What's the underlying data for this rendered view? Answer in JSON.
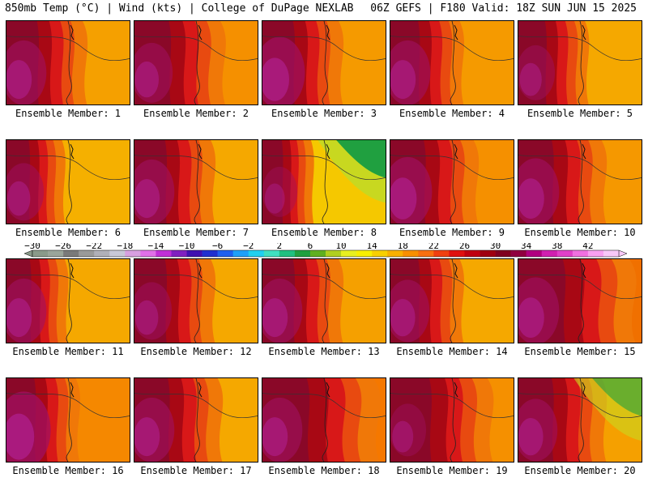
{
  "header": {
    "left": "850mb Temp (°C) | Wind (kts) | College of DuPage NEXLAB",
    "right": "06Z GEFS | F180 Valid: 18Z SUN JUN 15 2025"
  },
  "colorbar": {
    "labels": [
      "−30",
      "−26",
      "−22",
      "−18",
      "−14",
      "−10",
      "−6",
      "−2",
      "2",
      "6",
      "10",
      "14",
      "18",
      "22",
      "26",
      "30",
      "34",
      "38",
      "42"
    ],
    "colors": [
      "#8a9a8a",
      "#9aa59a",
      "#7a7a7a",
      "#9a9a9a",
      "#b0b0b8",
      "#c8c8d8",
      "#d8a0e0",
      "#e070e8",
      "#c030d8",
      "#8020c0",
      "#4010b0",
      "#2030d0",
      "#2060f0",
      "#20a0f8",
      "#20d0f0",
      "#40e0c0",
      "#20c080",
      "#20a040",
      "#60b020",
      "#b0d020",
      "#e8f020",
      "#f8f000",
      "#f8d000",
      "#f8b000",
      "#f89000",
      "#f87010",
      "#f04010",
      "#e01010",
      "#c00010",
      "#a00010",
      "#800020",
      "#900040",
      "#b00080",
      "#d020b0",
      "#e040c8",
      "#f070e0",
      "#f8a0f0",
      "#f8c8f8"
    ]
  },
  "panels": [
    {
      "label": "Ensemble Member: 1",
      "base": "#f5a000",
      "west": 0.55,
      "hot": 0.6,
      "green": 0
    },
    {
      "label": "Ensemble Member: 2",
      "base": "#f59000",
      "west": 0.62,
      "hot": 0.5,
      "green": 0
    },
    {
      "label": "Ensemble Member: 3",
      "base": "#f59a00",
      "west": 0.55,
      "hot": 0.75,
      "green": 0
    },
    {
      "label": "Ensemble Member: 4",
      "base": "#f59a00",
      "west": 0.5,
      "hot": 0.6,
      "green": 0
    },
    {
      "label": "Ensemble Member: 5",
      "base": "#f5a800",
      "west": 0.48,
      "hot": 0.4,
      "green": 0
    },
    {
      "label": "Ensemble Member: 6",
      "base": "#f5b000",
      "west": 0.4,
      "hot": 0.45,
      "green": 0
    },
    {
      "label": "Ensemble Member: 7",
      "base": "#f5a800",
      "west": 0.55,
      "hot": 0.6,
      "green": 0
    },
    {
      "label": "Ensemble Member: 8",
      "base": "#f5c800",
      "west": 0.35,
      "hot": 0.3,
      "green": 1
    },
    {
      "label": "Ensemble Member: 9",
      "base": "#f59000",
      "west": 0.6,
      "hot": 0.7,
      "green": 0
    },
    {
      "label": "Ensemble Member: 10",
      "base": "#f59800",
      "west": 0.6,
      "hot": 0.65,
      "green": 0
    },
    {
      "label": "Ensemble Member: 11",
      "base": "#f5a800",
      "west": 0.42,
      "hot": 0.6,
      "green": 0
    },
    {
      "label": "Ensemble Member: 12",
      "base": "#f5a800",
      "west": 0.55,
      "hot": 0.45,
      "green": 0
    },
    {
      "label": "Ensemble Member: 13",
      "base": "#f5a000",
      "west": 0.55,
      "hot": 0.6,
      "green": 0
    },
    {
      "label": "Ensemble Member: 14",
      "base": "#f5a800",
      "west": 0.5,
      "hot": 0.55,
      "green": 0
    },
    {
      "label": "Ensemble Member: 15",
      "base": "#f07000",
      "west": 0.8,
      "hot": 0.65,
      "green": 0
    },
    {
      "label": "Ensemble Member: 16",
      "base": "#f58800",
      "west": 0.5,
      "hot": 0.85,
      "green": 0
    },
    {
      "label": "Ensemble Member: 17",
      "base": "#f5a800",
      "west": 0.6,
      "hot": 0.6,
      "green": 0
    },
    {
      "label": "Ensemble Member: 18",
      "base": "#f57800",
      "west": 0.8,
      "hot": 0.6,
      "green": 0
    },
    {
      "label": "Ensemble Member: 19",
      "base": "#f59000",
      "west": 0.7,
      "hot": 0.35,
      "green": 0
    },
    {
      "label": "Ensemble Member: 20",
      "base": "#f5a000",
      "west": 0.6,
      "hot": 0.55,
      "green": 0.6
    }
  ]
}
